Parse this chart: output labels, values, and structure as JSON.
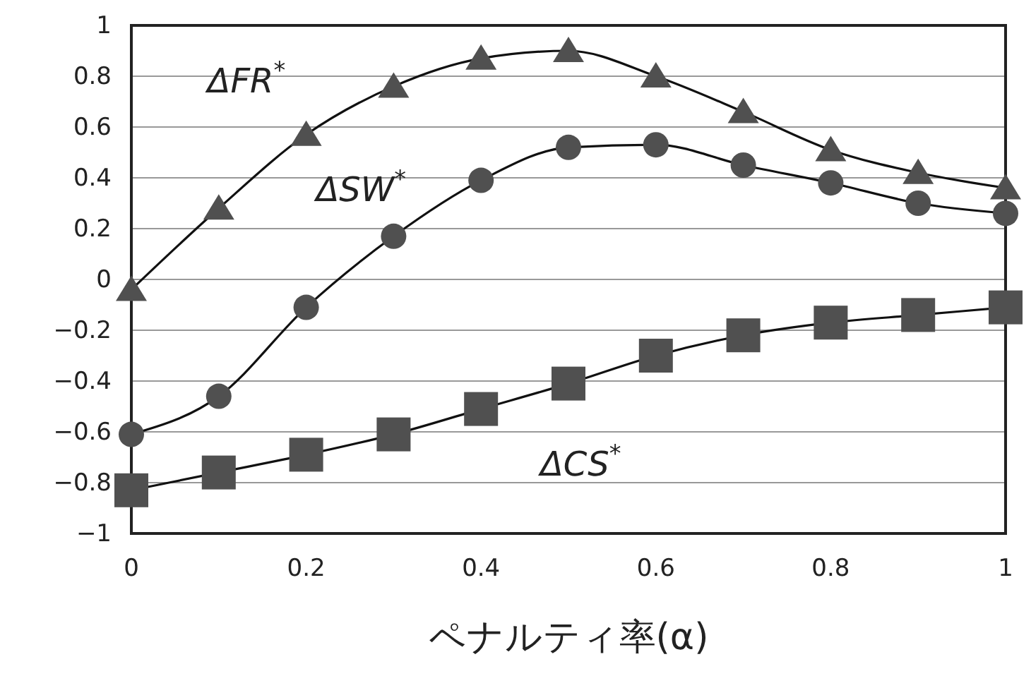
{
  "chart_data": {
    "type": "line",
    "xlabel": "ペナルティ率(α)",
    "x": [
      0,
      0.1,
      0.2,
      0.3,
      0.4,
      0.5,
      0.6,
      0.7,
      0.8,
      0.9,
      1
    ],
    "xlim": [
      0,
      1
    ],
    "xticks": [
      0,
      0.2,
      0.4,
      0.6,
      0.8,
      1
    ],
    "ylim": [
      -1,
      1
    ],
    "yticks": [
      -1,
      -0.8,
      -0.6,
      -0.4,
      -0.2,
      0,
      0.2,
      0.4,
      0.6,
      0.8,
      1
    ],
    "grid": "y",
    "series": [
      {
        "name": "ΔFR$^{*}$",
        "color": "#505050",
        "marker": "triangle",
        "values": [
          -0.04,
          0.28,
          0.57,
          0.76,
          0.87,
          0.9,
          0.8,
          0.66,
          0.51,
          0.42,
          0.36
        ]
      },
      {
        "name": "ΔSW$^{*}$",
        "color": "#505050",
        "marker": "circle",
        "values": [
          -0.61,
          -0.46,
          -0.11,
          0.17,
          0.39,
          0.52,
          0.53,
          0.45,
          0.38,
          0.3,
          0.26
        ]
      },
      {
        "name": "ΔCS$^{*}$",
        "color": "#505050",
        "marker": "square",
        "values": [
          -0.83,
          -0.76,
          -0.69,
          -0.61,
          -0.51,
          -0.41,
          -0.3,
          -0.22,
          -0.17,
          -0.14,
          -0.11
        ]
      }
    ]
  }
}
